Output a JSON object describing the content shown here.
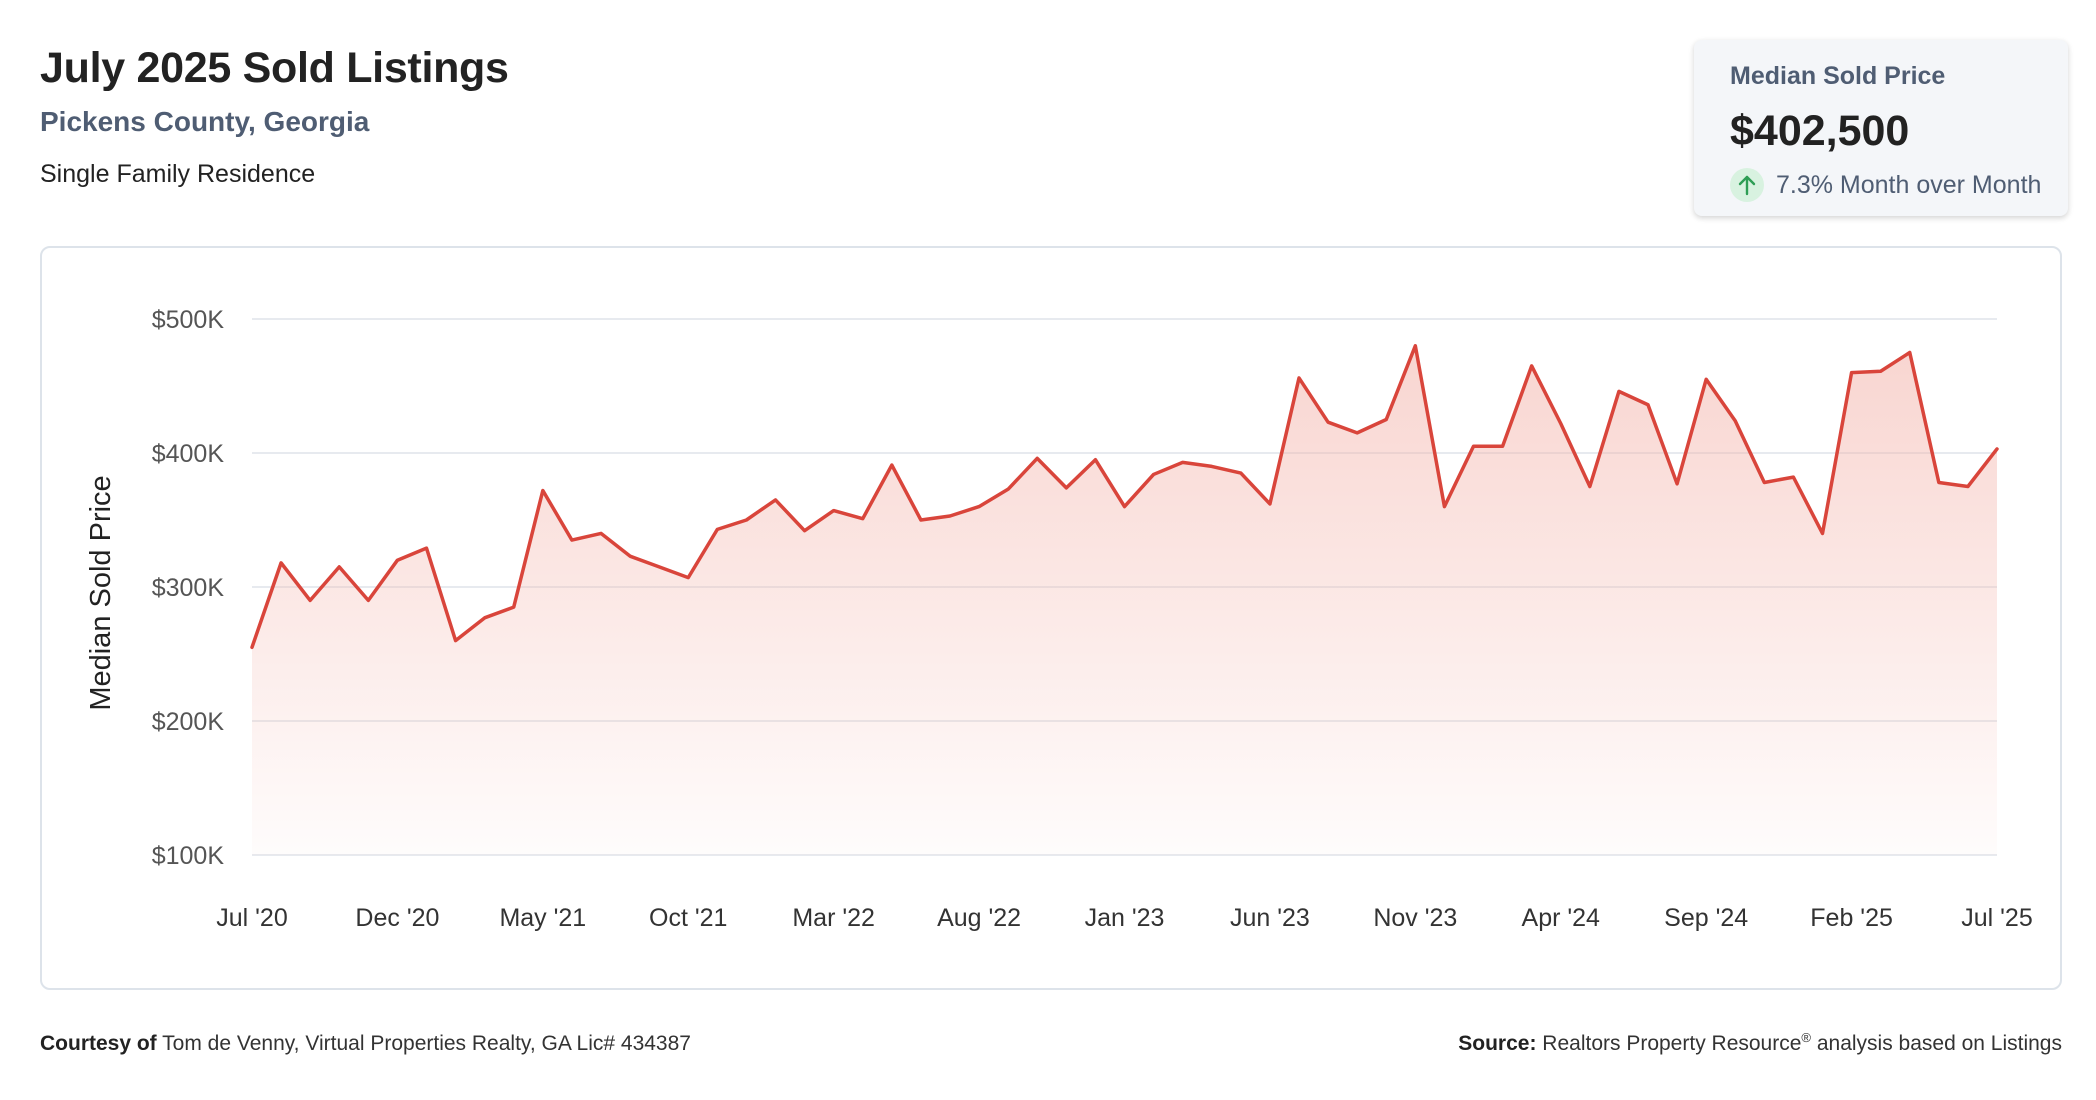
{
  "header": {
    "title": "July 2025 Sold Listings",
    "location": "Pickens County, Georgia",
    "property_type": "Single Family Residence"
  },
  "stat_card": {
    "label": "Median Sold Price",
    "value": "$402,500",
    "change": "7.3% Month over Month",
    "change_direction": "up",
    "icon": "arrow-up-icon",
    "accent_color": "#2e9e55"
  },
  "footer": {
    "courtesy_label": "Courtesy of",
    "courtesy_text": "Tom de Venny, Virtual Properties Realty, GA Lic# 434387",
    "source_label": "Source:",
    "source_text_1": "Realtors Property Resource",
    "source_reg": "®",
    "source_text_2": " analysis based on Listings"
  },
  "chart_data": {
    "type": "area",
    "title": "",
    "xlabel": "",
    "ylabel": "Median Sold Price",
    "ylim": [
      100000,
      500000
    ],
    "y_ticks": [
      100000,
      200000,
      300000,
      400000,
      500000
    ],
    "y_tick_labels": [
      "$100K",
      "$200K",
      "$300K",
      "$400K",
      "$500K"
    ],
    "x_tick_labels": [
      "Jul '20",
      "Dec '20",
      "May '21",
      "Oct '21",
      "Mar '22",
      "Aug '22",
      "Jan '23",
      "Jun '23",
      "Nov '23",
      "Apr '24",
      "Sep '24",
      "Feb '25",
      "Jul '25"
    ],
    "x_tick_step": 5,
    "grid": true,
    "line_color": "#d9453b",
    "fill_color": "#f3b3aa",
    "series": [
      {
        "values": [
          255000,
          318000,
          290000,
          315000,
          290000,
          320000,
          329000,
          260000,
          277000,
          285000,
          372000,
          335000,
          340000,
          323000,
          315000,
          307000,
          343000,
          350000,
          365000,
          342000,
          357000,
          351000,
          391000,
          350000,
          353000,
          360000,
          373000,
          396000,
          374000,
          395000,
          360000,
          384000,
          393000,
          390000,
          385000,
          362000,
          456000,
          423000,
          415000,
          425000,
          480000,
          360000,
          405000,
          405000,
          465000,
          422000,
          375000,
          446000,
          436000,
          377000,
          455000,
          424000,
          378000,
          382000,
          340000,
          460000,
          461000,
          475000,
          378000,
          375000,
          403000
        ]
      }
    ]
  }
}
